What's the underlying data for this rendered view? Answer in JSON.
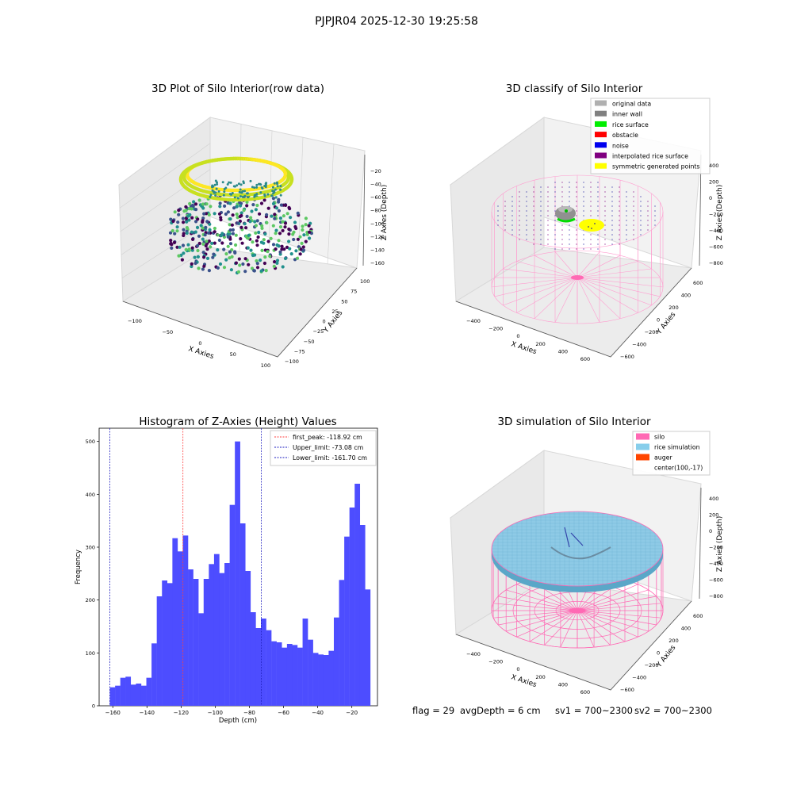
{
  "figure_title": "PJPJR04 2025-12-30 19:25:58",
  "footer": {
    "flag": "flag = 29",
    "avg_depth": "avgDepth = 6 cm",
    "sv1": "sv1 = 700~2300",
    "sv2": "sv2 = 700~2300"
  },
  "colors": {
    "hist_bar": "#4d4dff",
    "first_peak": "#ff4040",
    "limits": "#2020c0",
    "silo_wire": "#ff69b4",
    "rice": "#8ecae6"
  },
  "chart_data": [
    {
      "type": "scatter3d",
      "title": "3D Plot of Silo Interior(row data)",
      "xlabel": "X Axies",
      "ylabel": "Y Axies",
      "zlabel": "Z Axies (Depth)",
      "xticks": [
        "−100",
        "−50",
        "0",
        "50",
        "100"
      ],
      "yticks": [
        "100",
        "75",
        "50",
        "25",
        "0",
        "−25",
        "−50",
        "−75",
        "−100"
      ],
      "zticks": [
        "−20",
        "−40",
        "−60",
        "−80",
        "−100",
        "−120",
        "−140",
        "−160"
      ],
      "colormap": "viridis"
    },
    {
      "type": "scatter3d",
      "title": "3D classify of Silo Interior",
      "xlabel": "X Axies",
      "ylabel": "Y Axies",
      "zlabel": "Z Axies (Depth)",
      "xticks": [
        "−400",
        "−200",
        "0",
        "200",
        "400",
        "600"
      ],
      "yticks": [
        "600",
        "400",
        "200",
        "0",
        "−200",
        "−400",
        "−600"
      ],
      "zticks": [
        "400",
        "200",
        "0",
        "−200",
        "−400",
        "−600",
        "−800"
      ],
      "legend_position": "top-right",
      "legend": [
        {
          "label": "original data",
          "color": "#b0b0b0"
        },
        {
          "label": "inner wall",
          "color": "#808080"
        },
        {
          "label": "rice surface",
          "color": "#00ee00"
        },
        {
          "label": "obstacle",
          "color": "#ff0000"
        },
        {
          "label": "noise",
          "color": "#0000ee"
        },
        {
          "label": "interpolated rice surface",
          "color": "#800080"
        },
        {
          "label": "symmetric generated points",
          "color": "#ffff00"
        }
      ]
    },
    {
      "type": "bar",
      "title": "Histogram of Z-Axies (Height) Values",
      "xlabel": "Depth (cm)",
      "ylabel": "Frequency",
      "xlim": [
        -168,
        -5
      ],
      "ylim": [
        0,
        525
      ],
      "xticks": [
        -160,
        -140,
        -120,
        -100,
        -80,
        -60,
        -40,
        -20
      ],
      "xtick_labels": [
        "−160",
        "−140",
        "−120",
        "−100",
        "−80",
        "−60",
        "−40",
        "−20"
      ],
      "yticks": [
        0,
        100,
        200,
        300,
        400,
        500
      ],
      "yticks_labels": [
        "0",
        "100",
        "200",
        "300",
        "400",
        "500"
      ],
      "bin_start": -161.7,
      "bin_width": 3.05,
      "values": [
        35,
        38,
        53,
        55,
        40,
        42,
        38,
        53,
        118,
        207,
        237,
        232,
        317,
        292,
        322,
        258,
        240,
        175,
        240,
        268,
        287,
        251,
        270,
        380,
        500,
        345,
        255,
        177,
        147,
        165,
        143,
        122,
        120,
        110,
        117,
        115,
        110,
        165,
        125,
        100,
        97,
        96,
        104,
        167,
        238,
        320,
        375,
        420,
        342,
        220
      ],
      "vlines": [
        {
          "x": -118.92,
          "label": "first_peak: -118.92 cm",
          "color": "#ff4040"
        },
        {
          "x": -73.08,
          "label": "Upper_limit: -73.08 cm",
          "color": "#2020c0"
        },
        {
          "x": -161.7,
          "label": "Lower_limit: -161.70 cm",
          "color": "#2020c0"
        }
      ],
      "legend_position": "top-right"
    },
    {
      "type": "surface3d",
      "title": "3D simulation of Silo Interior",
      "xlabel": "X Axies",
      "ylabel": "Y Axies",
      "zlabel": "Z Axies (Depth)",
      "xticks": [
        "−400",
        "−200",
        "0",
        "200",
        "400",
        "600"
      ],
      "yticks": [
        "600",
        "400",
        "200",
        "0",
        "−200",
        "−400",
        "−600"
      ],
      "zticks": [
        "400",
        "200",
        "0",
        "−200",
        "−400",
        "−600",
        "−800"
      ],
      "legend_position": "top-right",
      "legend": [
        {
          "label": "silo",
          "color": "#ff69b4"
        },
        {
          "label": "rice simulation",
          "color": "#87ceeb"
        },
        {
          "label": "auger",
          "color": "#ff4500"
        },
        {
          "label": "center(100,-17)",
          "color": ""
        }
      ]
    }
  ]
}
